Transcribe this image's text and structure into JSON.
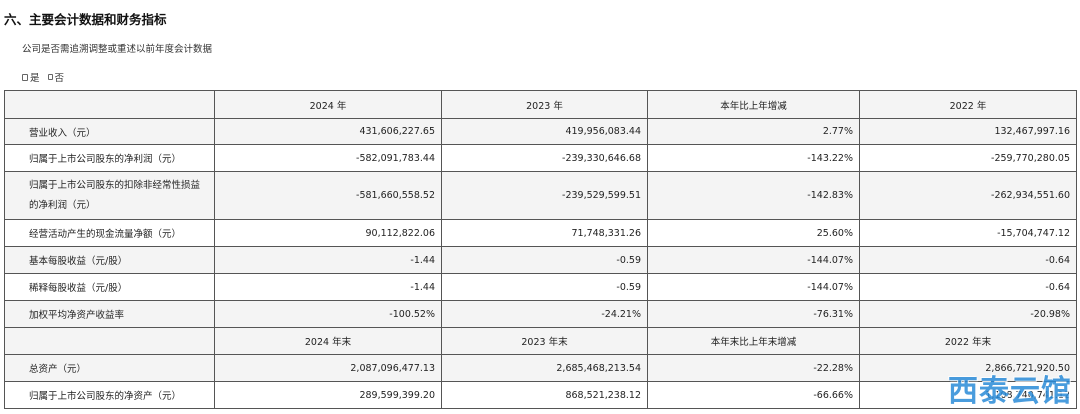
{
  "section_title": "六、主要会计数据和财务指标",
  "restatement_question": "公司是否需追溯调整或重述以前年度会计数据",
  "options": {
    "yes": "是",
    "no": "否"
  },
  "header1": [
    "",
    "2024 年",
    "2023 年",
    "本年比上年增减",
    "2022 年"
  ],
  "rows1": [
    {
      "label": "营业收入（元）",
      "v2024": "431,606,227.65",
      "v2023": "419,956,083.44",
      "change": "2.77%",
      "v2022": "132,467,997.16"
    },
    {
      "label": "归属于上市公司股东的净利润（元）",
      "v2024": "-582,091,783.44",
      "v2023": "-239,330,646.68",
      "change": "-143.22%",
      "v2022": "-259,770,280.05"
    },
    {
      "label": "归属于上市公司股东的扣除非经常性损益的净利润（元）",
      "v2024": "-581,660,558.52",
      "v2023": "-239,529,599.51",
      "change": "-142.83%",
      "v2022": "-262,934,551.60"
    },
    {
      "label": "经营活动产生的现金流量净额（元）",
      "v2024": "90,112,822.06",
      "v2023": "71,748,331.26",
      "change": "25.60%",
      "v2022": "-15,704,747.12"
    },
    {
      "label": "基本每股收益（元/股）",
      "v2024": "-1.44",
      "v2023": "-0.59",
      "change": "-144.07%",
      "v2022": "-0.64"
    },
    {
      "label": "稀释每股收益（元/股）",
      "v2024": "-1.44",
      "v2023": "-0.59",
      "change": "-144.07%",
      "v2022": "-0.64"
    },
    {
      "label": "加权平均净资产收益率",
      "v2024": "-100.52%",
      "v2023": "-24.21%",
      "change": "-76.31%",
      "v2022": "-20.98%"
    }
  ],
  "header2": [
    "",
    "2024 年末",
    "2023 年末",
    "本年末比上年末增减",
    "2022 年末"
  ],
  "rows2": [
    {
      "label": "总资产（元）",
      "v2024": "2,087,096,477.13",
      "v2023": "2,685,468,213.54",
      "change": "-22.28%",
      "v2022": "2,866,721,920.50"
    },
    {
      "label": "归属于上市公司股东的净资产（元）",
      "v2024": "289,599,399.20",
      "v2023": "868,521,238.12",
      "change": "-66.66%",
      "v2022": "1,108,740,741.12"
    }
  ],
  "watermark": "西泰云馆"
}
